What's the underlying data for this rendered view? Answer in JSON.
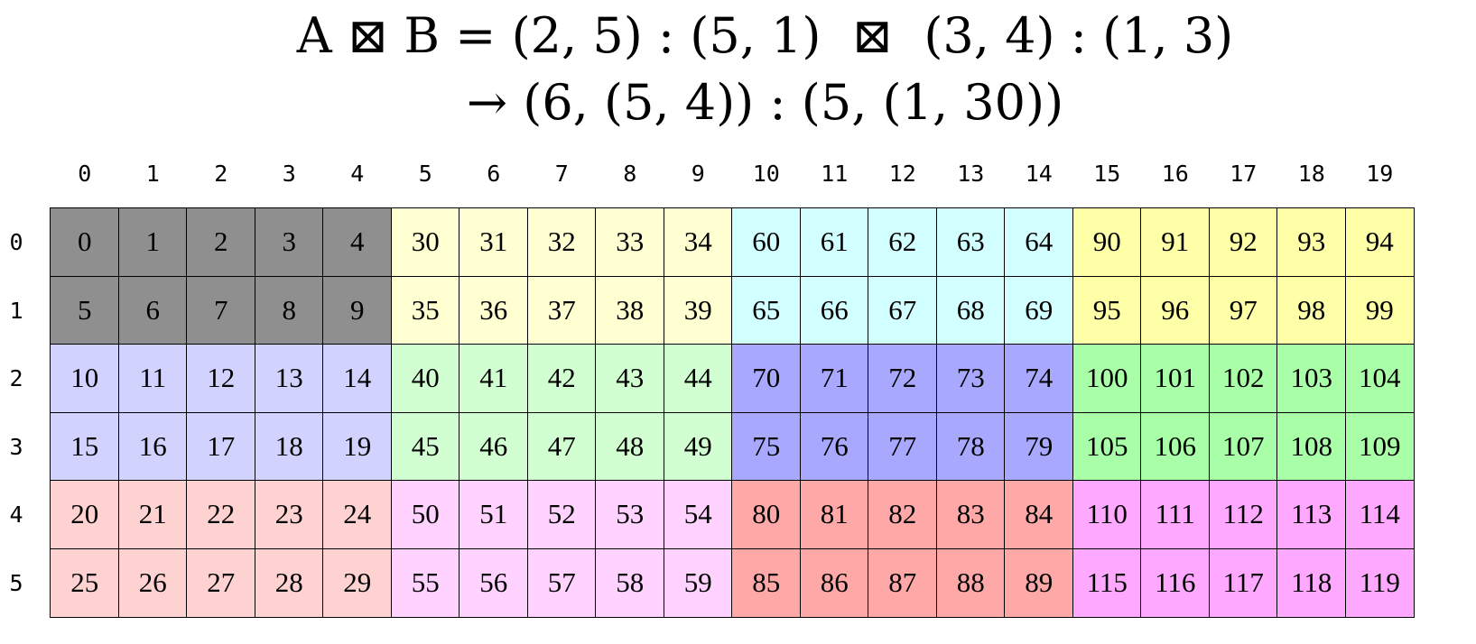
{
  "title": {
    "line1": "A ⊠ B = (2, 5) : (5, 1)  ⊠  (3, 4) : (1, 3)",
    "line2": "→ (6, (5, 4)) : (5, (1, 30))"
  },
  "column_labels": [
    "0",
    "1",
    "2",
    "3",
    "4",
    "5",
    "6",
    "7",
    "8",
    "9",
    "10",
    "11",
    "12",
    "13",
    "14",
    "15",
    "16",
    "17",
    "18",
    "19"
  ],
  "row_labels": [
    "0",
    "1",
    "2",
    "3",
    "4",
    "5"
  ],
  "cells": [
    [
      "0",
      "1",
      "2",
      "3",
      "4",
      "30",
      "31",
      "32",
      "33",
      "34",
      "60",
      "61",
      "62",
      "63",
      "64",
      "90",
      "91",
      "92",
      "93",
      "94"
    ],
    [
      "5",
      "6",
      "7",
      "8",
      "9",
      "35",
      "36",
      "37",
      "38",
      "39",
      "65",
      "66",
      "67",
      "68",
      "69",
      "95",
      "96",
      "97",
      "98",
      "99"
    ],
    [
      "10",
      "11",
      "12",
      "13",
      "14",
      "40",
      "41",
      "42",
      "43",
      "44",
      "70",
      "71",
      "72",
      "73",
      "74",
      "100",
      "101",
      "102",
      "103",
      "104"
    ],
    [
      "15",
      "16",
      "17",
      "18",
      "19",
      "45",
      "46",
      "47",
      "48",
      "49",
      "75",
      "76",
      "77",
      "78",
      "79",
      "105",
      "106",
      "107",
      "108",
      "109"
    ],
    [
      "20",
      "21",
      "22",
      "23",
      "24",
      "50",
      "51",
      "52",
      "53",
      "54",
      "80",
      "81",
      "82",
      "83",
      "84",
      "110",
      "111",
      "112",
      "113",
      "114"
    ],
    [
      "25",
      "26",
      "27",
      "28",
      "29",
      "55",
      "56",
      "57",
      "58",
      "59",
      "85",
      "86",
      "87",
      "88",
      "89",
      "115",
      "116",
      "117",
      "118",
      "119"
    ]
  ],
  "block_colors": [
    [
      "#8f8f8f",
      "#ffffd2",
      "#d2ffff",
      "#ffffa8"
    ],
    [
      "#d2d2ff",
      "#d2ffd2",
      "#a8a8ff",
      "#a8ffa8"
    ],
    [
      "#ffd2d2",
      "#ffd2ff",
      "#ffa8a8",
      "#ffa8ff"
    ]
  ]
}
